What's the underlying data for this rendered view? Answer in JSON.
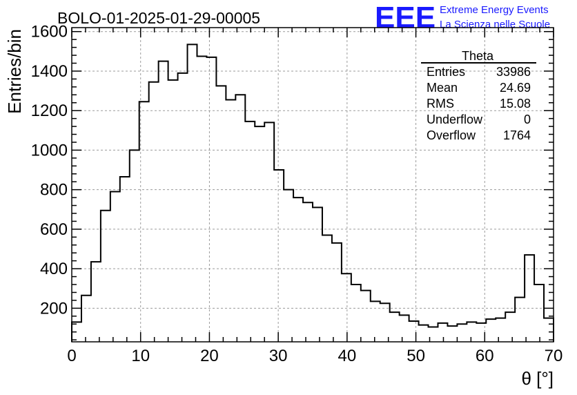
{
  "header": {
    "run_title": "BOLO-01-2025-01-29-00005",
    "logo_text": "EEE",
    "logo_line1": "Extreme Energy Events",
    "logo_line2": "La Scienza nelle Scuole",
    "logo_color": "#1a1aff"
  },
  "stats_box": {
    "title": "Theta",
    "rows": [
      {
        "label": "Entries",
        "value": "33986"
      },
      {
        "label": "Mean",
        "value": "24.69"
      },
      {
        "label": "RMS",
        "value": "15.08"
      },
      {
        "label": "Underflow",
        "value": "0"
      },
      {
        "label": "Overflow",
        "value": "1764"
      }
    ]
  },
  "chart_data": {
    "type": "histogram",
    "title": "BOLO-01-2025-01-29-00005",
    "xlabel": "θ [°]",
    "ylabel": "Entries/bin",
    "xlim": [
      0,
      70
    ],
    "ylim": [
      30,
      1620
    ],
    "grid": true,
    "bin_width": 1.4,
    "bin_start": 0,
    "x_ticks": [
      0,
      10,
      20,
      30,
      40,
      50,
      60,
      70
    ],
    "y_ticks": [
      200,
      400,
      600,
      800,
      1000,
      1200,
      1400,
      1600
    ],
    "values": [
      130,
      265,
      435,
      695,
      790,
      865,
      1000,
      1245,
      1345,
      1450,
      1355,
      1390,
      1535,
      1475,
      1470,
      1325,
      1255,
      1280,
      1145,
      1120,
      1140,
      900,
      800,
      760,
      735,
      710,
      570,
      530,
      375,
      320,
      290,
      235,
      225,
      180,
      165,
      135,
      115,
      105,
      125,
      110,
      120,
      130,
      125,
      145,
      150,
      180,
      255,
      470,
      320,
      150
    ]
  }
}
